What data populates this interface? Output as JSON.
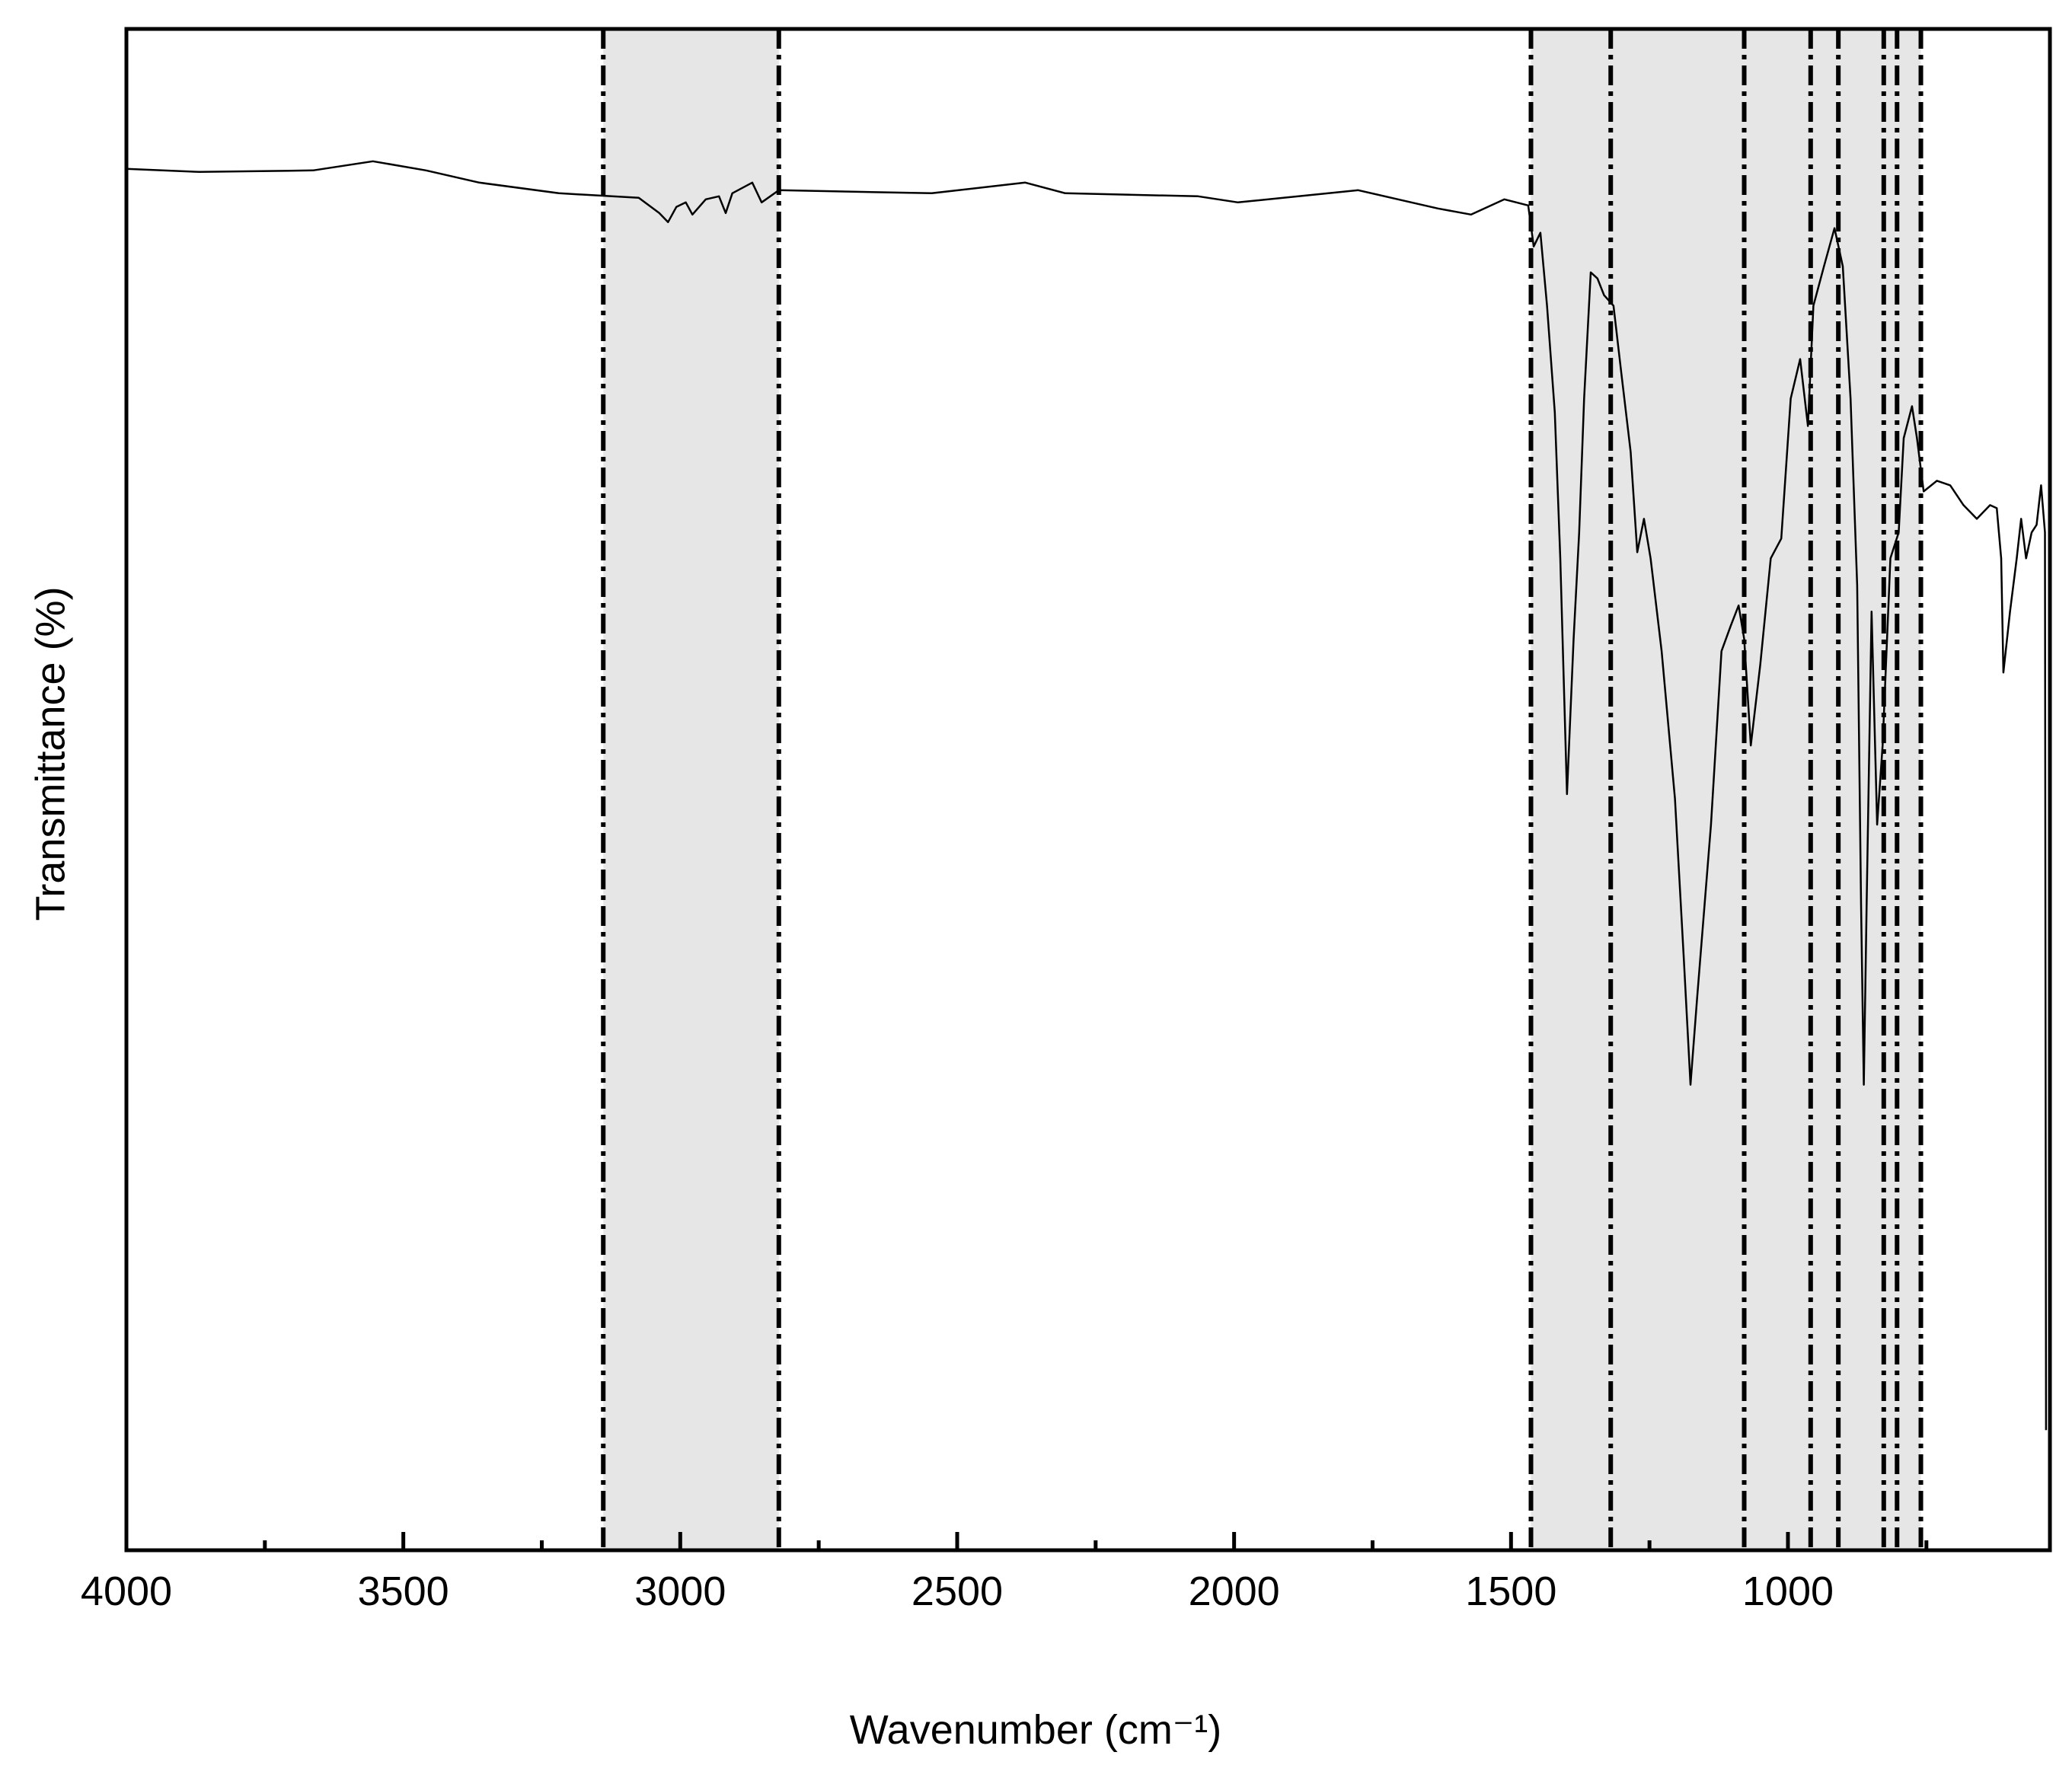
{
  "chart_data": {
    "type": "line",
    "x_label": "Wavenumber (cm⁻¹)",
    "y_label": "Transmittance (%)",
    "color": "#000000",
    "x": [
      4000,
      3868,
      3663,
      3555,
      3459,
      3363,
      3219,
      3075,
      3038,
      3022,
      3007,
      2990,
      2978,
      2954,
      2930,
      2918,
      2906,
      2870,
      2853,
      2822,
      2546,
      2377,
      2305,
      2065,
      1993,
      1776,
      1704,
      1632,
      1572,
      1512,
      1469,
      1459,
      1447,
      1435,
      1421,
      1411,
      1399,
      1387,
      1377,
      1368,
      1356,
      1344,
      1332,
      1315,
      1301,
      1284,
      1272,
      1260,
      1248,
      1228,
      1204,
      1188,
      1176,
      1164,
      1139,
      1120,
      1103,
      1089,
      1079,
      1067,
      1050,
      1031,
      1012,
      995,
      978,
      964,
      954,
      935,
      916,
      901,
      887,
      875,
      868,
      863,
      858,
      849,
      839,
      829,
      815,
      800,
      791,
      776,
      767,
      755,
      731,
      707,
      683,
      659,
      635,
      623,
      615,
      611,
      599,
      587,
      579,
      570,
      560,
      551,
      543,
      536,
      534
    ],
    "values": [
      90.8,
      90.6,
      90.7,
      91.3,
      90.7,
      89.9,
      89.2,
      88.9,
      87.9,
      87.3,
      88.3,
      88.6,
      87.8,
      88.8,
      89.0,
      87.9,
      89.2,
      89.9,
      88.6,
      89.4,
      89.2,
      89.9,
      89.2,
      89.0,
      88.6,
      89.4,
      88.8,
      88.2,
      87.8,
      88.8,
      88.4,
      85.7,
      86.6,
      81.8,
      74.8,
      65.2,
      49.7,
      59.9,
      66.9,
      75.7,
      84.0,
      83.6,
      82.5,
      81.8,
      77.4,
      72.2,
      65.6,
      67.8,
      65.2,
      59.1,
      49.4,
      38.9,
      30.6,
      36.3,
      47.7,
      59.1,
      60.8,
      62.1,
      59.9,
      52.9,
      58.2,
      65.2,
      66.5,
      75.7,
      78.3,
      73.9,
      81.8,
      84.4,
      86.9,
      84.4,
      75.7,
      63.4,
      42.4,
      30.6,
      42.4,
      61.7,
      47.7,
      52.9,
      65.2,
      66.9,
      73.1,
      75.2,
      73.1,
      69.6,
      70.3,
      70.0,
      68.7,
      67.8,
      68.7,
      68.5,
      65.2,
      57.7,
      61.7,
      65.2,
      67.8,
      65.2,
      66.9,
      67.4,
      70.0,
      66.9,
      7.9
    ],
    "xlim": [
      4000,
      527
    ],
    "ylim": [
      0,
      100
    ],
    "xticks": [
      4000,
      3500,
      3000,
      2500,
      2000,
      1500,
      1000
    ],
    "xminor": [
      3750,
      3250,
      2750,
      2250,
      1750,
      1250,
      750
    ],
    "regions": [
      [
        3139,
        2822
      ],
      [
        1464,
        760
      ]
    ],
    "region_color": "#e6e6e6",
    "vlines": [
      3139,
      2822,
      1464,
      1320,
      1079,
      959,
      909,
      827,
      803,
      760
    ]
  }
}
